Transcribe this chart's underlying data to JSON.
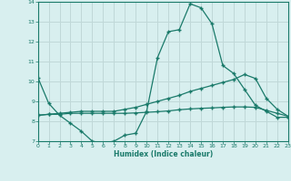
{
  "xlabel": "Humidex (Indice chaleur)",
  "x_values": [
    0,
    1,
    2,
    3,
    4,
    5,
    6,
    7,
    8,
    9,
    10,
    11,
    12,
    13,
    14,
    15,
    16,
    17,
    18,
    19,
    20,
    21,
    22,
    23
  ],
  "line1": [
    10.2,
    8.9,
    8.3,
    7.9,
    7.5,
    7.0,
    6.9,
    7.0,
    7.3,
    7.4,
    8.5,
    11.2,
    12.5,
    12.6,
    13.9,
    13.7,
    12.9,
    10.8,
    10.4,
    9.6,
    8.8,
    8.5,
    8.2,
    8.2
  ],
  "line2": [
    8.3,
    8.35,
    8.4,
    8.45,
    8.5,
    8.5,
    8.5,
    8.5,
    8.6,
    8.7,
    8.85,
    9.0,
    9.15,
    9.3,
    9.5,
    9.65,
    9.8,
    9.95,
    10.1,
    10.35,
    10.15,
    9.15,
    8.6,
    8.25
  ],
  "line3": [
    8.3,
    8.35,
    8.35,
    8.4,
    8.4,
    8.4,
    8.4,
    8.4,
    8.4,
    8.42,
    8.45,
    8.48,
    8.52,
    8.58,
    8.62,
    8.65,
    8.67,
    8.7,
    8.72,
    8.72,
    8.7,
    8.55,
    8.4,
    8.25
  ],
  "line_color": "#1a7a6a",
  "background_color": "#d8efef",
  "grid_color": "#c0d8d8",
  "ylim": [
    7,
    14
  ],
  "yticks": [
    7,
    8,
    9,
    10,
    11,
    12,
    13,
    14
  ],
  "xlim": [
    0,
    23
  ]
}
